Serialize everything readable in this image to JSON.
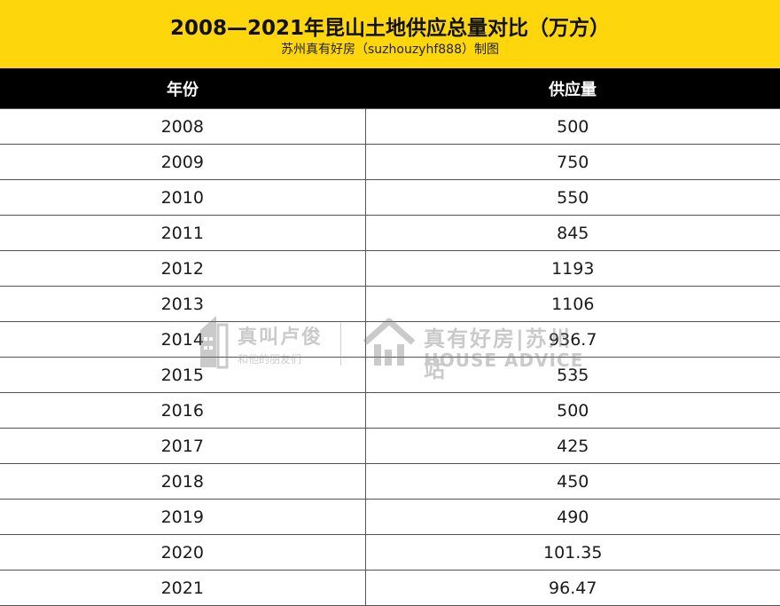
{
  "header": {
    "title": "2008—2021年昆山土地供应总量对比（万方）",
    "subtitle": "苏州真有好房（suzhouzyhf888）制图"
  },
  "table": {
    "columns": [
      "年份",
      "供应量"
    ],
    "rows": [
      [
        "2008",
        "500"
      ],
      [
        "2009",
        "750"
      ],
      [
        "2010",
        "550"
      ],
      [
        "2011",
        "845"
      ],
      [
        "2012",
        "1193"
      ],
      [
        "2013",
        "1106"
      ],
      [
        "2014",
        "936.7"
      ],
      [
        "2015",
        "535"
      ],
      [
        "2016",
        "500"
      ],
      [
        "2017",
        "425"
      ],
      [
        "2018",
        "450"
      ],
      [
        "2019",
        "490"
      ],
      [
        "2020",
        "101.35"
      ],
      [
        "2021",
        "96.47"
      ]
    ]
  },
  "watermark": {
    "left_title": "真叫卢俊",
    "left_sub": "和他的朋友们",
    "right_title": "真有好房|苏州站",
    "right_sub": "HOUSE ADVICE"
  },
  "colors": {
    "title_bg": "#fdd60b",
    "header_bg": "#000000",
    "header_text": "#ffffff"
  }
}
